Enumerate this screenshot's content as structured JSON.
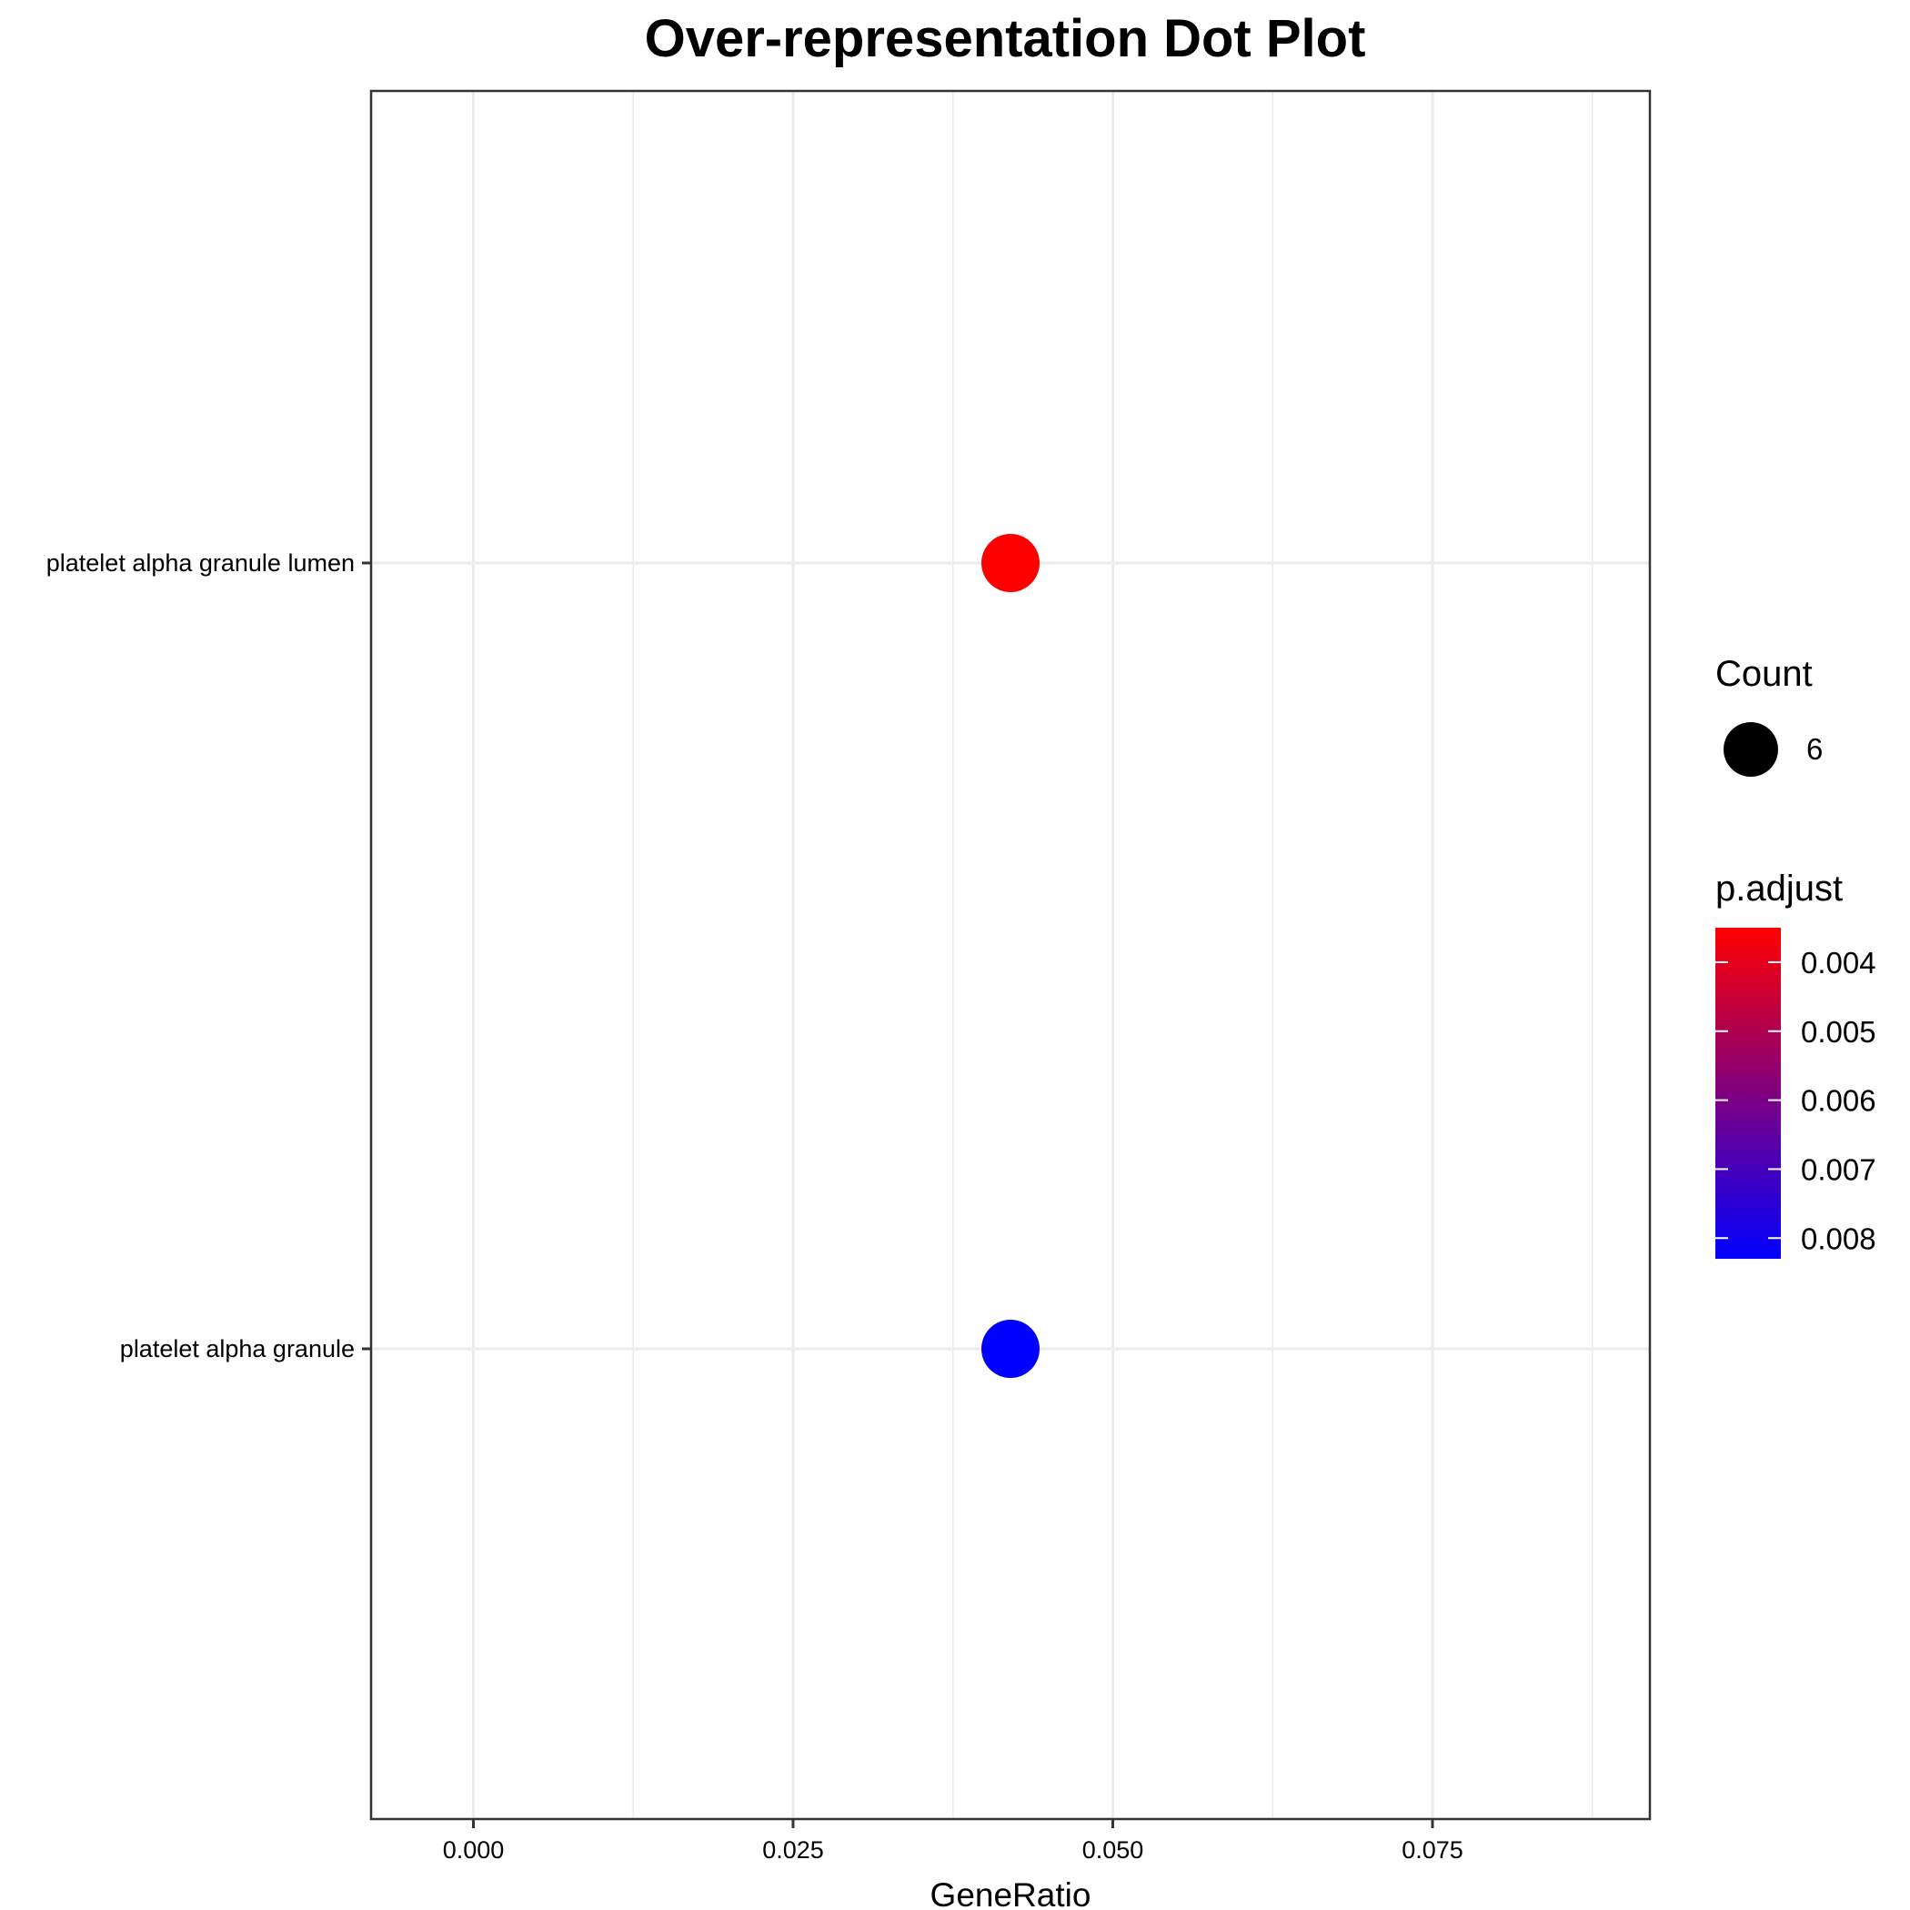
{
  "chart_data": {
    "type": "scatter",
    "title": "Over-representation Dot Plot",
    "xlabel": "GeneRatio",
    "ylabel": "",
    "xlim": [
      -0.008,
      0.092
    ],
    "x_ticks": [
      "0.000",
      "0.025",
      "0.050",
      "0.075"
    ],
    "x_tick_values": [
      0.0,
      0.025,
      0.05,
      0.075
    ],
    "x_minor_values": [
      0.0125,
      0.0375,
      0.0625,
      0.0875
    ],
    "categories": [
      "platelet alpha granule lumen",
      "platelet alpha granule"
    ],
    "points": [
      {
        "term": "platelet alpha granule lumen",
        "gene_ratio": 0.042,
        "count": 6,
        "p_adjust": 0.0035,
        "color": "#ff0000"
      },
      {
        "term": "platelet alpha granule",
        "gene_ratio": 0.042,
        "count": 6,
        "p_adjust": 0.0083,
        "color": "#0000ff"
      }
    ],
    "grid": true,
    "legend_position": "right",
    "legend_count": {
      "title": "Count",
      "items": [
        {
          "label": "6",
          "value": 6
        }
      ]
    },
    "legend_color": {
      "title": "p.adjust",
      "ticks": [
        "0.004",
        "0.005",
        "0.006",
        "0.007",
        "0.008"
      ],
      "tick_values": [
        0.004,
        0.005,
        0.006,
        0.007,
        0.008
      ],
      "range": [
        0.0035,
        0.0083
      ],
      "low_color": "#ff0000",
      "high_color": "#0000ff"
    }
  }
}
